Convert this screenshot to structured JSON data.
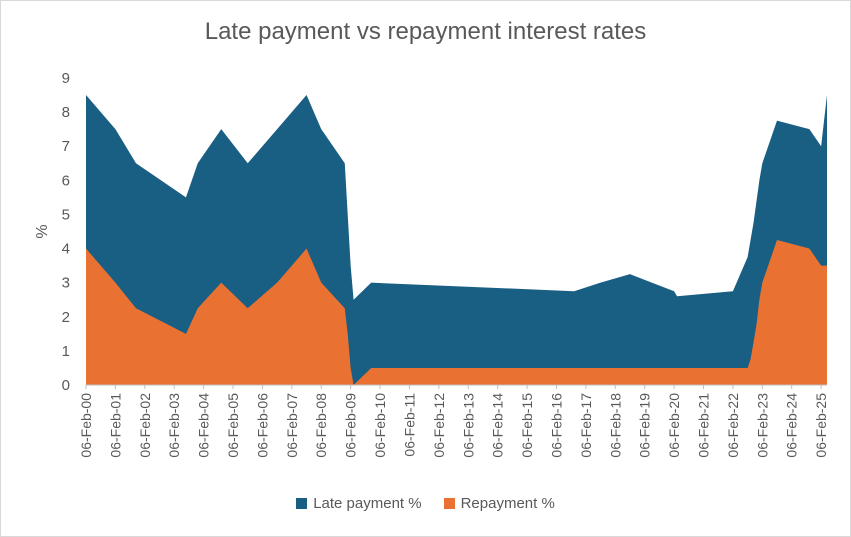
{
  "chart_data": {
    "type": "area",
    "title": "Late payment vs repayment interest rates",
    "ylabel": "%",
    "ylim": [
      0,
      9
    ],
    "y_ticks": [
      0,
      1,
      2,
      3,
      4,
      5,
      6,
      7,
      8,
      9
    ],
    "x_range": [
      2000.0,
      2025.2
    ],
    "x_ticks": [
      "06-Feb-00",
      "06-Feb-01",
      "06-Feb-02",
      "06-Feb-03",
      "06-Feb-04",
      "06-Feb-05",
      "06-Feb-06",
      "06-Feb-07",
      "06-Feb-08",
      "06-Feb-09",
      "06-Feb-10",
      "06-Feb-11",
      "06-Feb-12",
      "06-Feb-13",
      "06-Feb-14",
      "06-Feb-15",
      "06-Feb-16",
      "06-Feb-17",
      "06-Feb-18",
      "06-Feb-19",
      "06-Feb-20",
      "06-Feb-21",
      "06-Feb-22",
      "06-Feb-23",
      "06-Feb-24",
      "06-Feb-25"
    ],
    "legend_position": "bottom",
    "stacked": true,
    "series": [
      {
        "name": "Late payment %",
        "color": "#195e83",
        "points": [
          [
            2000.0,
            8.5
          ],
          [
            2001.0,
            7.5
          ],
          [
            2001.7,
            6.5
          ],
          [
            2003.4,
            5.5
          ],
          [
            2003.8,
            6.5
          ],
          [
            2004.6,
            7.5
          ],
          [
            2005.5,
            6.5
          ],
          [
            2007.5,
            8.5
          ],
          [
            2008.0,
            7.5
          ],
          [
            2008.8,
            6.5
          ],
          [
            2008.9,
            5.0
          ],
          [
            2009.0,
            3.5
          ],
          [
            2009.1,
            2.5
          ],
          [
            2009.7,
            3.0
          ],
          [
            2016.6,
            2.75
          ],
          [
            2017.5,
            3.0
          ],
          [
            2018.5,
            3.25
          ],
          [
            2020.0,
            2.75
          ],
          [
            2020.1,
            2.6
          ],
          [
            2022.0,
            2.75
          ],
          [
            2022.5,
            3.75
          ],
          [
            2022.7,
            4.75
          ],
          [
            2022.9,
            6.0
          ],
          [
            2023.0,
            6.5
          ],
          [
            2023.2,
            7.0
          ],
          [
            2023.4,
            7.5
          ],
          [
            2023.5,
            7.75
          ],
          [
            2024.6,
            7.5
          ],
          [
            2025.0,
            7.0
          ],
          [
            2025.2,
            8.5
          ]
        ]
      },
      {
        "name": "Repayment %",
        "color": "#e97132",
        "points": [
          [
            2000.0,
            4.0
          ],
          [
            2001.0,
            3.0
          ],
          [
            2001.7,
            2.25
          ],
          [
            2003.4,
            1.5
          ],
          [
            2003.8,
            2.25
          ],
          [
            2004.6,
            3.0
          ],
          [
            2005.5,
            2.25
          ],
          [
            2006.5,
            3.0
          ],
          [
            2007.5,
            4.0
          ],
          [
            2008.0,
            3.0
          ],
          [
            2008.8,
            2.25
          ],
          [
            2008.9,
            1.5
          ],
          [
            2009.0,
            0.5
          ],
          [
            2009.1,
            0.0
          ],
          [
            2009.7,
            0.5
          ],
          [
            2022.5,
            0.5
          ],
          [
            2022.6,
            0.75
          ],
          [
            2022.7,
            1.25
          ],
          [
            2022.8,
            1.75
          ],
          [
            2022.9,
            2.5
          ],
          [
            2023.0,
            3.0
          ],
          [
            2023.2,
            3.5
          ],
          [
            2023.4,
            4.0
          ],
          [
            2023.5,
            4.25
          ],
          [
            2024.6,
            4.0
          ],
          [
            2025.0,
            3.5
          ],
          [
            2025.2,
            3.5
          ]
        ]
      }
    ]
  }
}
